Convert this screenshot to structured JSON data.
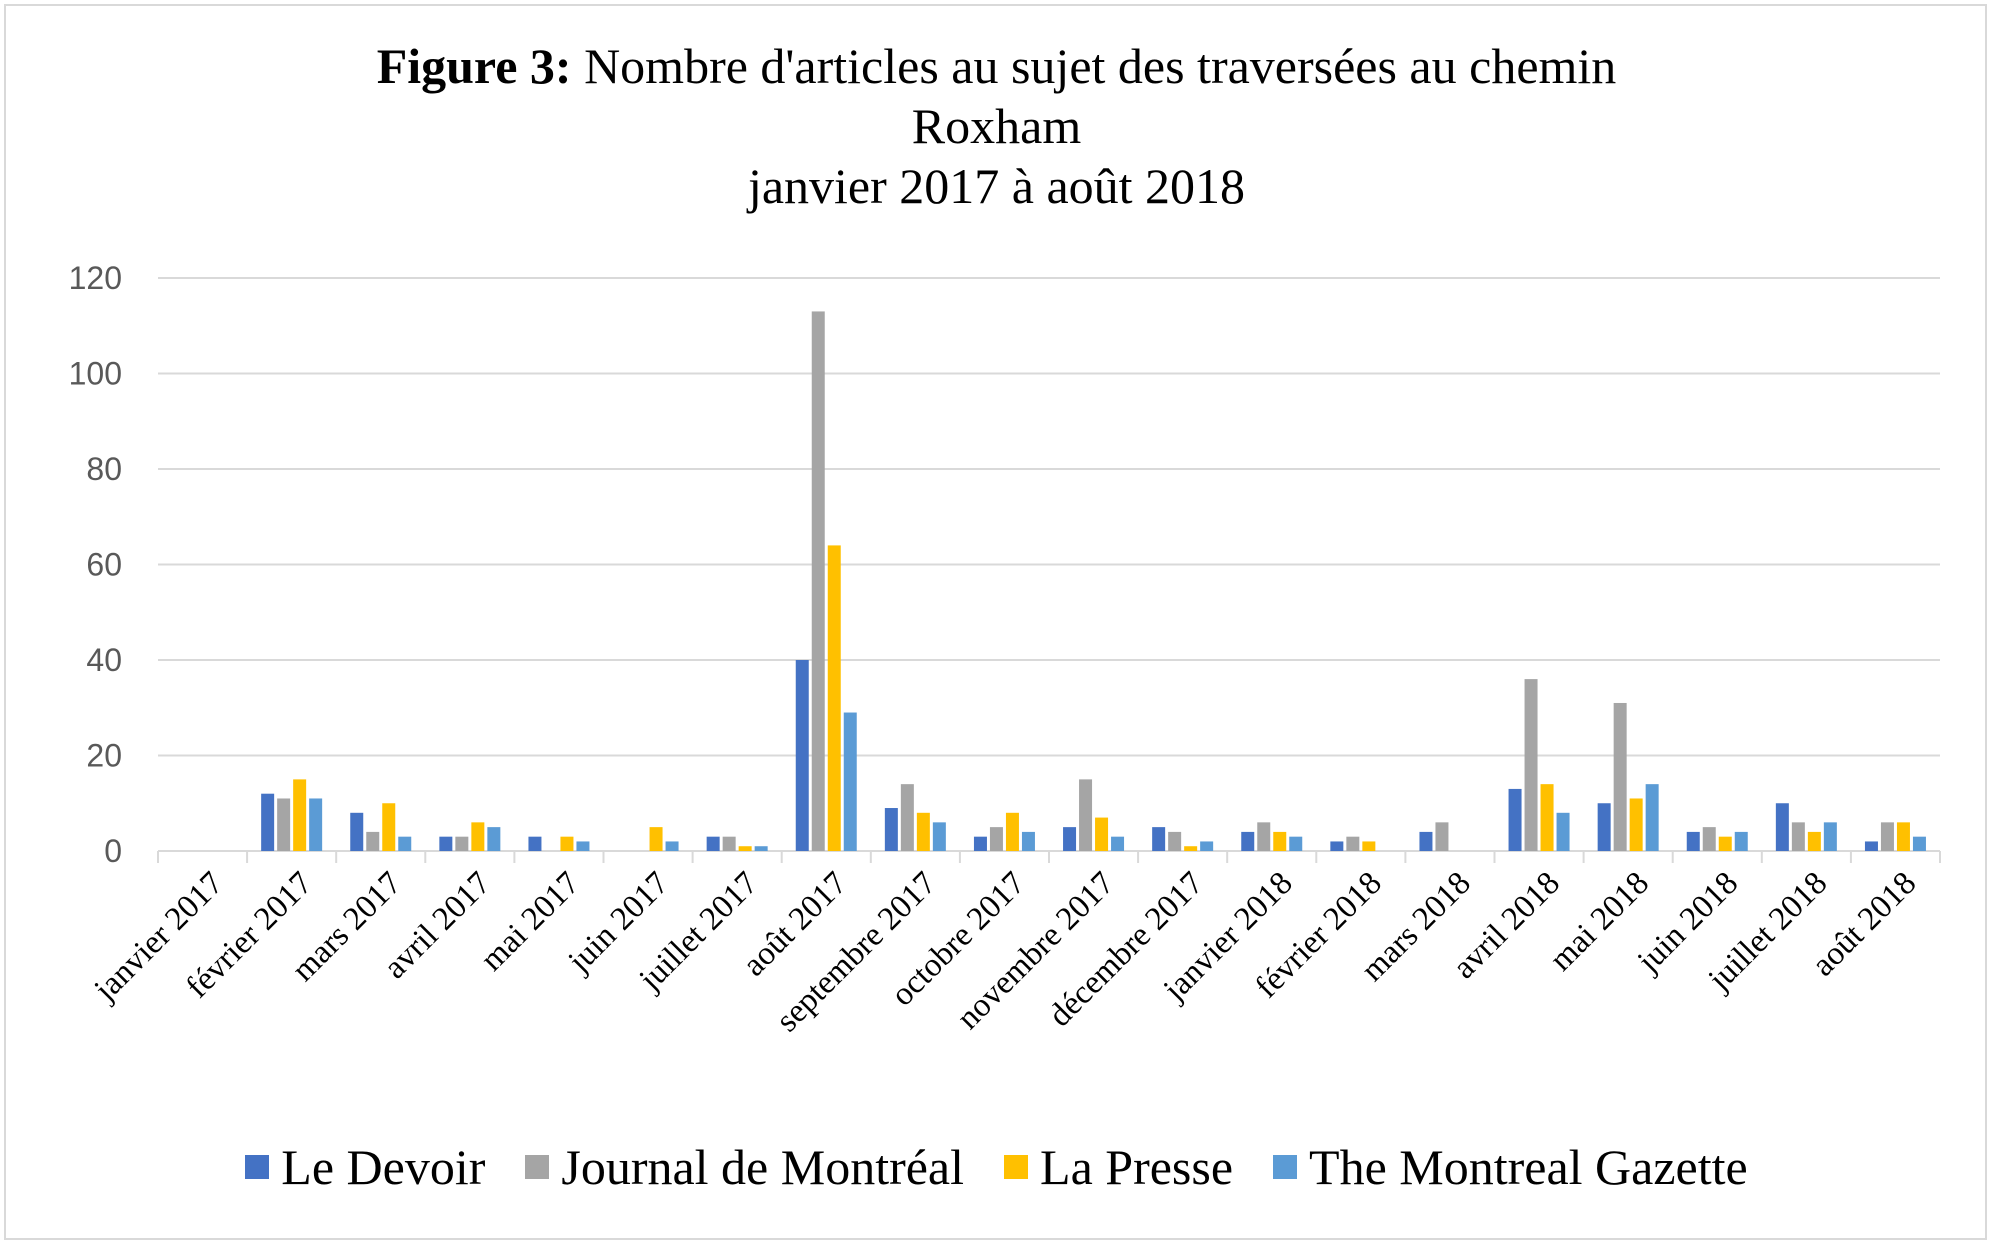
{
  "title": {
    "bold": "Figure 3:",
    "line1": " Nombre d'articles au sujet des traversées au chemin",
    "line2": "Roxham",
    "line3": "janvier 2017 à août 2018"
  },
  "colors": {
    "le_devoir": "#4472c4",
    "journal": "#a5a5a5",
    "la_presse": "#ffc000",
    "gazette": "#5b9bd5",
    "grid": "#d9d9d9",
    "axis_text": "#595959"
  },
  "legend": [
    "Le Devoir",
    "Journal de Montréal",
    "La Presse",
    "The Montreal Gazette"
  ],
  "chart_data": {
    "type": "bar",
    "ylim": [
      0,
      120
    ],
    "yticks": [
      0,
      20,
      40,
      60,
      80,
      100,
      120
    ],
    "grid": true,
    "legend_position": "bottom",
    "categories": [
      "janvier 2017",
      "février 2017",
      "mars 2017",
      "avril 2017",
      "mai 2017",
      "juin 2017",
      "juillet 2017",
      "août 2017",
      "septembre 2017",
      "octobre 2017",
      "novembre 2017",
      "décembre 2017",
      "janvier 2018",
      "février 2018",
      "mars 2018",
      "avril 2018",
      "mai 2018",
      "juin 2018",
      "juillet 2018",
      "août 2018"
    ],
    "series": [
      {
        "name": "Le Devoir",
        "values": [
          0,
          12,
          8,
          3,
          3,
          0,
          3,
          40,
          9,
          3,
          5,
          5,
          4,
          2,
          4,
          13,
          10,
          4,
          10,
          2
        ]
      },
      {
        "name": "Journal de Montréal",
        "values": [
          0,
          11,
          4,
          3,
          0,
          0,
          3,
          113,
          14,
          5,
          15,
          4,
          6,
          3,
          6,
          36,
          31,
          5,
          6,
          6
        ]
      },
      {
        "name": "La Presse",
        "values": [
          0,
          15,
          10,
          6,
          3,
          5,
          1,
          64,
          8,
          8,
          7,
          1,
          4,
          2,
          0,
          14,
          11,
          3,
          4,
          6
        ]
      },
      {
        "name": "The Montreal Gazette",
        "values": [
          0,
          11,
          3,
          5,
          2,
          2,
          1,
          29,
          6,
          4,
          3,
          2,
          3,
          0,
          0,
          8,
          14,
          4,
          6,
          3
        ]
      }
    ]
  }
}
